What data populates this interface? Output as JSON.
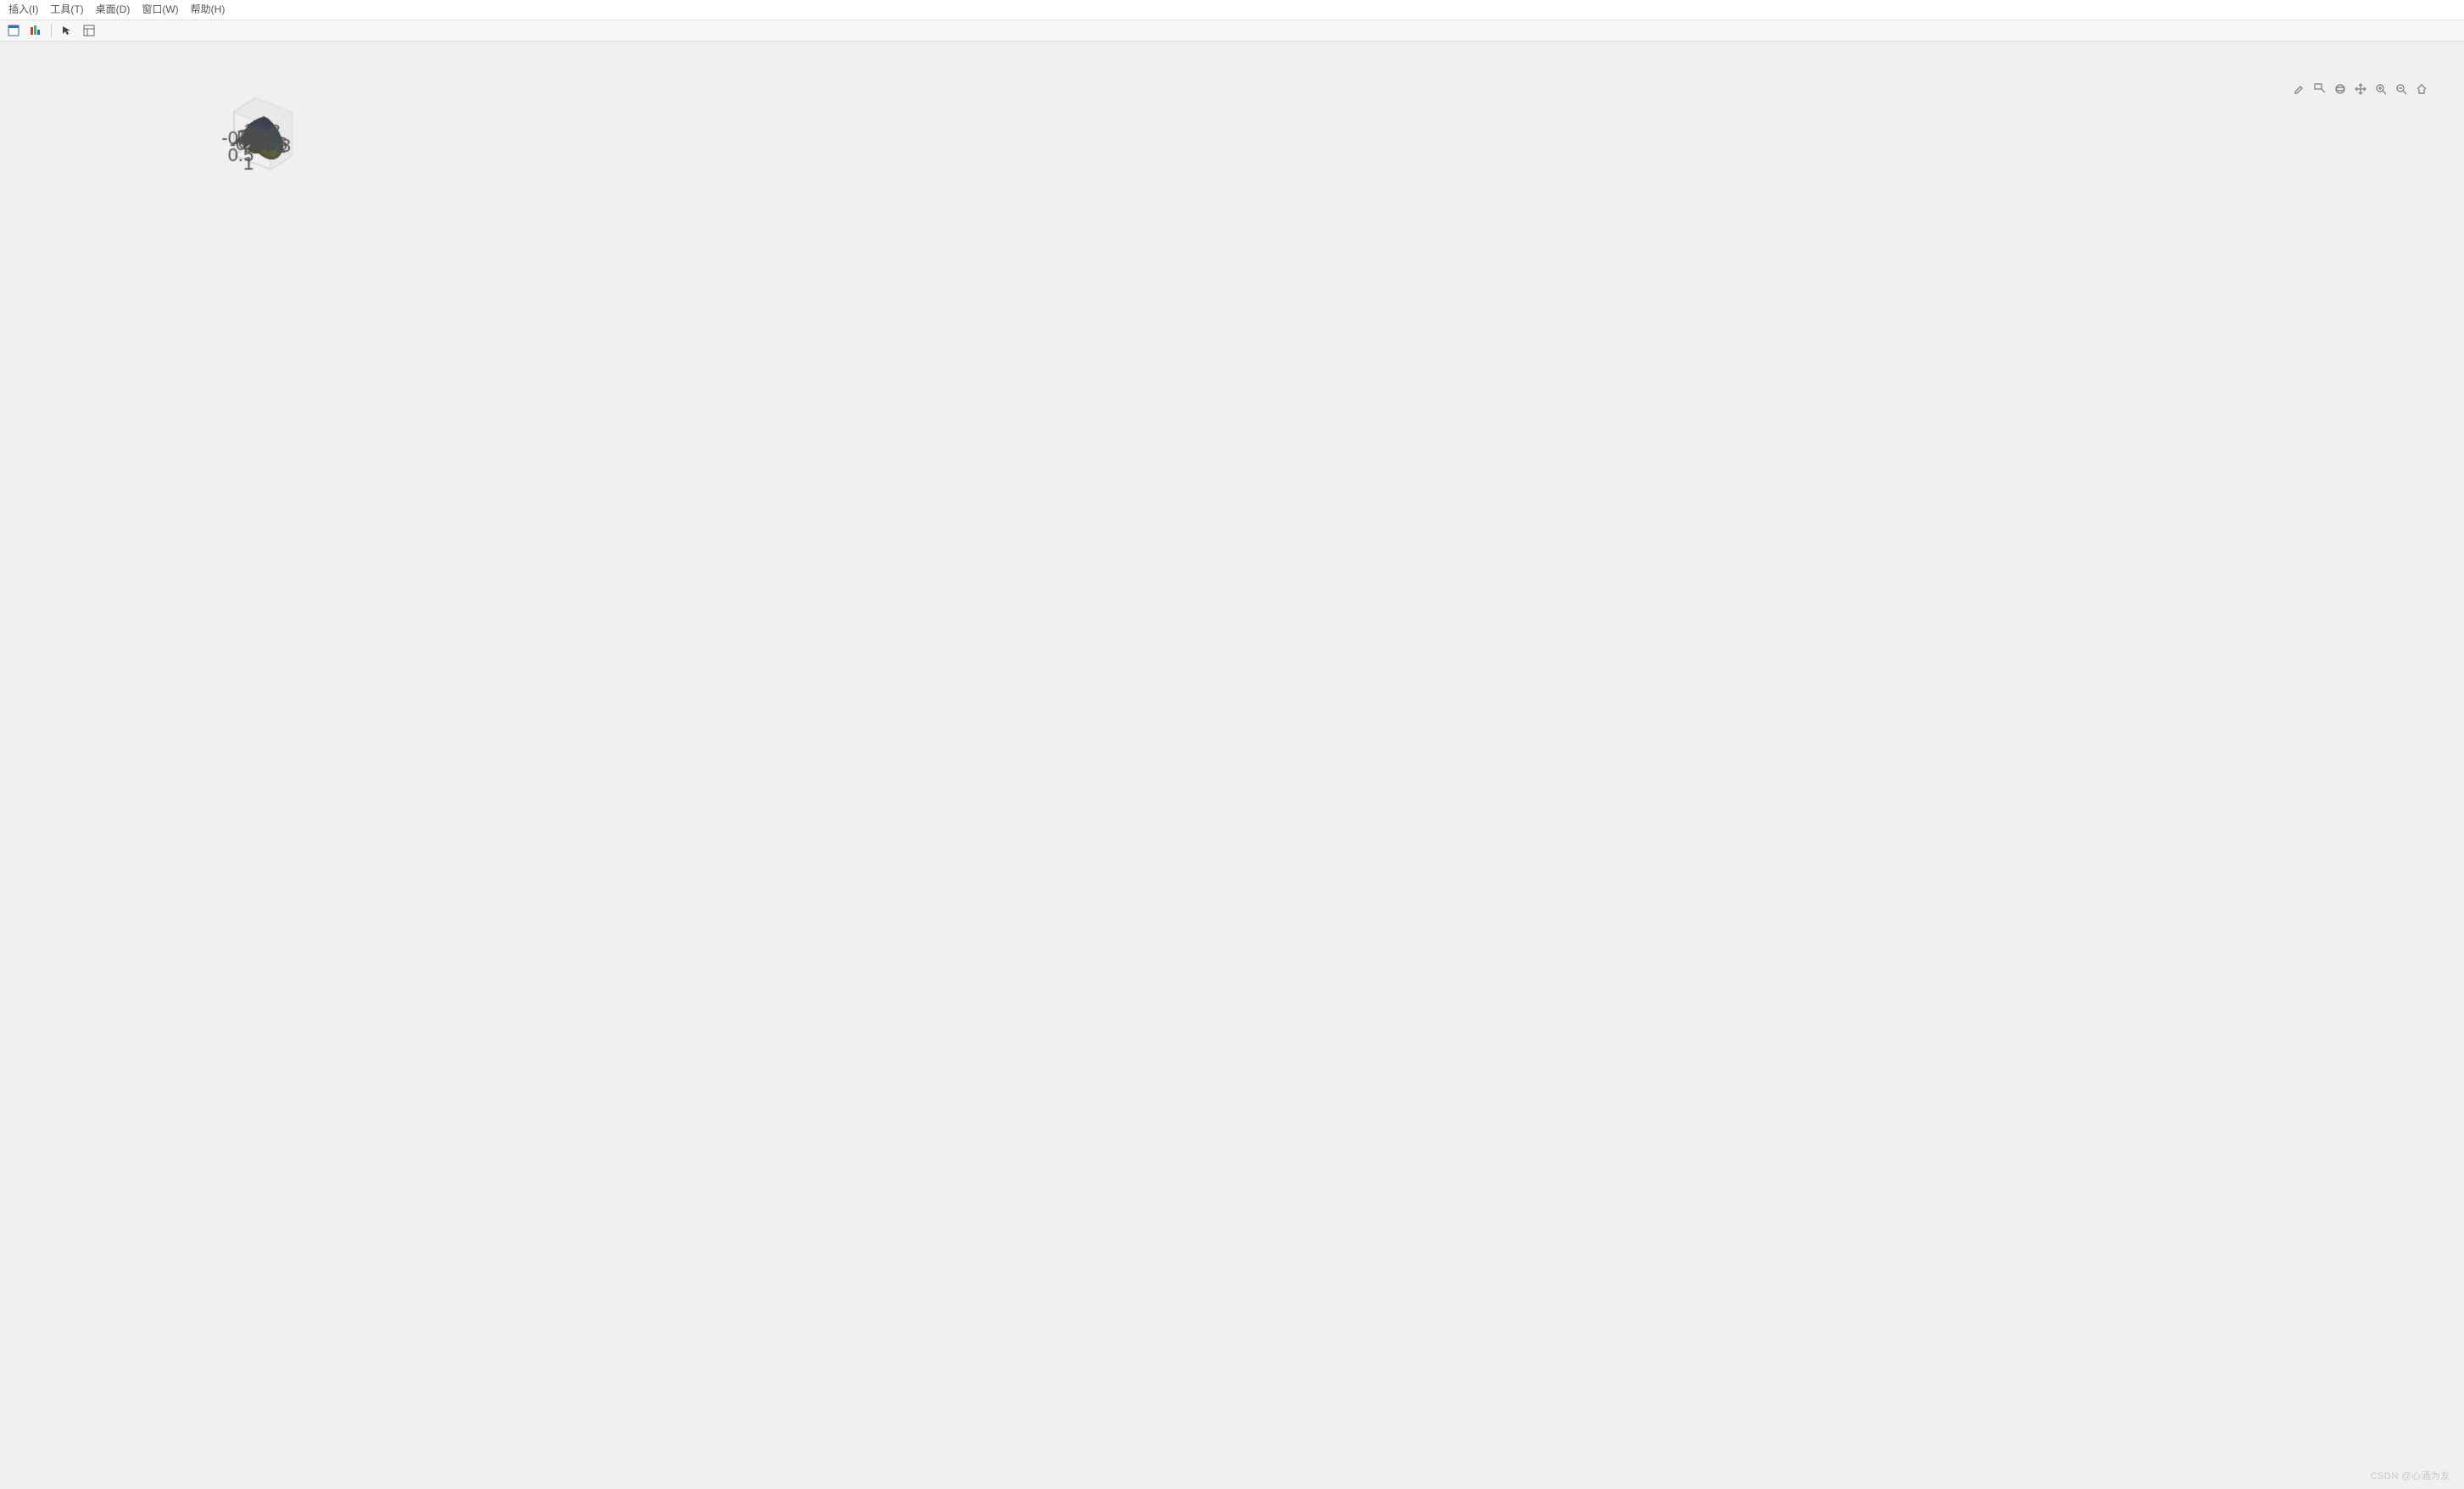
{
  "menubar": {
    "items": [
      "插入(I)",
      "工具(T)",
      "桌面(D)",
      "窗口(W)",
      "帮助(H)"
    ]
  },
  "toolbar": {
    "buttons": [
      {
        "name": "new-figure-icon",
        "tip": "新建图窗"
      },
      {
        "name": "plot-tools-icon",
        "tip": "绘图工具"
      }
    ],
    "buttons2": [
      {
        "name": "pointer-icon",
        "tip": "编辑绘图"
      },
      {
        "name": "inspector-icon",
        "tip": "属性检查器"
      }
    ]
  },
  "axes_toolbar": {
    "buttons": [
      {
        "name": "brush-icon",
        "tip": "刷选"
      },
      {
        "name": "data-cursor-icon",
        "tip": "数据提示"
      },
      {
        "name": "rotate3d-icon",
        "tip": "三维旋转"
      },
      {
        "name": "pan-icon",
        "tip": "平移"
      },
      {
        "name": "zoom-in-icon",
        "tip": "放大"
      },
      {
        "name": "zoom-out-icon",
        "tip": "缩小"
      },
      {
        "name": "home-icon",
        "tip": "还原视图"
      }
    ]
  },
  "watermark": "CSDN @心酒为友",
  "chart": {
    "type": "surface-3d",
    "description": "3D implicit heart surface (Taubin heart), colored by z (parula colormap), mesh edges on",
    "background_color": "#f0f0f0",
    "axes_box_color": "#d9d9d9",
    "grid_color": "#e8e8e8",
    "tick_font_size": 11,
    "tick_color": "#4d4d4d",
    "edge_color": "#404040",
    "edge_width": 0.35,
    "view": {
      "azimuth_deg": -37.5,
      "elevation_deg": 30
    },
    "axes": {
      "x": {
        "lim": [
          -1.2,
          1.2
        ],
        "ticks": [
          -1,
          -0.8,
          -0.6,
          -0.4,
          -0.2,
          0,
          0.2,
          0.4,
          0.6,
          0.8,
          1
        ]
      },
      "y": {
        "lim": [
          -0.9,
          0.9
        ],
        "ticks": [
          -0.8,
          -0.6,
          -0.4,
          -0.2,
          0,
          0.2,
          0.4,
          0.6,
          0.8
        ]
      },
      "z": {
        "lim": [
          -1.3,
          1.3
        ],
        "ticks": [
          -1,
          -0.5,
          0,
          0.5,
          1
        ]
      }
    },
    "colormap": {
      "name": "parula",
      "stops": [
        [
          0.0,
          "#3e26a8"
        ],
        [
          0.1,
          "#4646e0"
        ],
        [
          0.2,
          "#3f6bf1"
        ],
        [
          0.3,
          "#2e8ae6"
        ],
        [
          0.4,
          "#1ba7d3"
        ],
        [
          0.5,
          "#2cb8a8"
        ],
        [
          0.6,
          "#5ac864"
        ],
        [
          0.7,
          "#a4d247"
        ],
        [
          0.8,
          "#e1cc37"
        ],
        [
          0.9,
          "#fcc62d"
        ],
        [
          1.0,
          "#f9fb15"
        ]
      ],
      "mapped_axis": "z",
      "clim": [
        -1.1,
        1.2
      ]
    },
    "surface_equation": "(x^2 + (9/4)*y^2 + z^2 - 1)^3 - x^2*z^3 - (9/80)*y^2*z^3 = 0",
    "mesh_resolution_u": 60,
    "mesh_resolution_v": 60
  }
}
